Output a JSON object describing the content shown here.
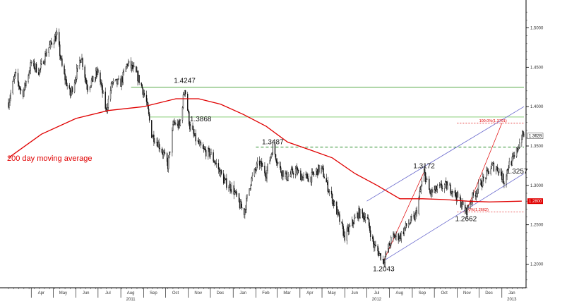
{
  "chart_data": {
    "type": "candlestick",
    "title": "",
    "ylim": [
      1.17,
      1.53
    ],
    "y_ticks": [
      1.2,
      1.25,
      1.3,
      1.35,
      1.4,
      1.45,
      1.5
    ],
    "y_tick_labels": [
      "1.2000",
      "1.2500",
      "1.3000",
      "1.3500",
      "1.4000",
      "1.4500",
      "1.5000"
    ],
    "x_range": [
      "2011-03-01",
      "2013-01-31"
    ],
    "month_labels": [
      {
        "date": "2011-04-01",
        "label": "Apr"
      },
      {
        "date": "2011-05-01",
        "label": "May"
      },
      {
        "date": "2011-06-01",
        "label": "Jun"
      },
      {
        "date": "2011-07-01",
        "label": "Jul"
      },
      {
        "date": "2011-08-01",
        "label": "Aug"
      },
      {
        "date": "2011-09-01",
        "label": "Sep"
      },
      {
        "date": "2011-10-01",
        "label": "Oct"
      },
      {
        "date": "2011-11-01",
        "label": "Nov"
      },
      {
        "date": "2011-12-01",
        "label": "Dec"
      },
      {
        "date": "2012-01-01",
        "label": "Jan"
      },
      {
        "date": "2012-02-01",
        "label": "Feb"
      },
      {
        "date": "2012-03-01",
        "label": "Mar"
      },
      {
        "date": "2012-04-01",
        "label": "Apr"
      },
      {
        "date": "2012-05-01",
        "label": "May"
      },
      {
        "date": "2012-06-01",
        "label": "Jun"
      },
      {
        "date": "2012-07-01",
        "label": "Jul"
      },
      {
        "date": "2012-08-01",
        "label": "Aug"
      },
      {
        "date": "2012-09-01",
        "label": "Sep"
      },
      {
        "date": "2012-10-01",
        "label": "Oct"
      },
      {
        "date": "2012-11-01",
        "label": "Nov"
      },
      {
        "date": "2012-12-01",
        "label": "Dec"
      },
      {
        "date": "2013-01-01",
        "label": "Jan"
      }
    ],
    "year_labels": [
      {
        "date": "2011-08-01",
        "label": "2011"
      },
      {
        "date": "2012-07-01",
        "label": "2012"
      },
      {
        "date": "2013-01-01",
        "label": "2013"
      }
    ],
    "price_path": [
      [
        "2011-03-01",
        1.405
      ],
      [
        "2011-03-10",
        1.44
      ],
      [
        "2011-03-20",
        1.415
      ],
      [
        "2011-04-01",
        1.455
      ],
      [
        "2011-04-12",
        1.445
      ],
      [
        "2011-04-22",
        1.47
      ],
      [
        "2011-05-01",
        1.485
      ],
      [
        "2011-05-06",
        1.49
      ],
      [
        "2011-05-14",
        1.445
      ],
      [
        "2011-05-24",
        1.415
      ],
      [
        "2011-06-01",
        1.44
      ],
      [
        "2011-06-08",
        1.465
      ],
      [
        "2011-06-16",
        1.425
      ],
      [
        "2011-06-25",
        1.435
      ],
      [
        "2011-07-01",
        1.445
      ],
      [
        "2011-07-12",
        1.395
      ],
      [
        "2011-07-20",
        1.43
      ],
      [
        "2011-08-01",
        1.43
      ],
      [
        "2011-08-10",
        1.455
      ],
      [
        "2011-08-20",
        1.445
      ],
      [
        "2011-08-28",
        1.43
      ],
      [
        "2011-09-05",
        1.405
      ],
      [
        "2011-09-12",
        1.365
      ],
      [
        "2011-09-20",
        1.355
      ],
      [
        "2011-09-28",
        1.34
      ],
      [
        "2011-10-04",
        1.325
      ],
      [
        "2011-10-12",
        1.38
      ],
      [
        "2011-10-20",
        1.375
      ],
      [
        "2011-10-27",
        1.4247
      ],
      [
        "2011-11-03",
        1.375
      ],
      [
        "2011-11-10",
        1.36
      ],
      [
        "2011-11-20",
        1.345
      ],
      [
        "2011-12-01",
        1.34
      ],
      [
        "2011-12-10",
        1.325
      ],
      [
        "2011-12-20",
        1.305
      ],
      [
        "2012-01-01",
        1.295
      ],
      [
        "2012-01-10",
        1.275
      ],
      [
        "2012-01-16",
        1.266
      ],
      [
        "2012-01-25",
        1.305
      ],
      [
        "2012-02-05",
        1.33
      ],
      [
        "2012-02-15",
        1.315
      ],
      [
        "2012-02-24",
        1.3487
      ],
      [
        "2012-03-05",
        1.32
      ],
      [
        "2012-03-15",
        1.31
      ],
      [
        "2012-03-25",
        1.32
      ],
      [
        "2012-04-05",
        1.31
      ],
      [
        "2012-04-16",
        1.31
      ],
      [
        "2012-04-26",
        1.32
      ],
      [
        "2012-05-01",
        1.32
      ],
      [
        "2012-05-10",
        1.295
      ],
      [
        "2012-05-20",
        1.27
      ],
      [
        "2012-06-01",
        1.235
      ],
      [
        "2012-06-10",
        1.25
      ],
      [
        "2012-06-20",
        1.265
      ],
      [
        "2012-07-01",
        1.26
      ],
      [
        "2012-07-10",
        1.225
      ],
      [
        "2012-07-24",
        1.2043
      ],
      [
        "2012-08-05",
        1.235
      ],
      [
        "2012-08-15",
        1.235
      ],
      [
        "2012-08-25",
        1.25
      ],
      [
        "2012-09-05",
        1.26
      ],
      [
        "2012-09-17",
        1.3172
      ],
      [
        "2012-09-25",
        1.29
      ],
      [
        "2012-10-05",
        1.295
      ],
      [
        "2012-10-15",
        1.3
      ],
      [
        "2012-10-25",
        1.295
      ],
      [
        "2012-11-05",
        1.28
      ],
      [
        "2012-11-13",
        1.2662
      ],
      [
        "2012-11-22",
        1.285
      ],
      [
        "2012-12-05",
        1.305
      ],
      [
        "2012-12-12",
        1.315
      ],
      [
        "2012-12-19",
        1.325
      ],
      [
        "2012-12-28",
        1.32
      ],
      [
        "2013-01-04",
        1.305
      ],
      [
        "2013-01-10",
        1.3257
      ],
      [
        "2013-01-18",
        1.335
      ],
      [
        "2013-01-28",
        1.3628
      ]
    ],
    "moving_average": {
      "name": "200 day moving average",
      "points": [
        [
          "2011-03-01",
          1.335
        ],
        [
          "2011-04-15",
          1.365
        ],
        [
          "2011-06-01",
          1.385
        ],
        [
          "2011-07-15",
          1.395
        ],
        [
          "2011-09-01",
          1.4
        ],
        [
          "2011-10-15",
          1.41
        ],
        [
          "2011-11-15",
          1.41
        ],
        [
          "2011-12-15",
          1.403
        ],
        [
          "2012-01-15",
          1.39
        ],
        [
          "2012-02-15",
          1.375
        ],
        [
          "2012-03-15",
          1.355
        ],
        [
          "2012-04-15",
          1.345
        ],
        [
          "2012-05-15",
          1.335
        ],
        [
          "2012-06-15",
          1.315
        ],
        [
          "2012-07-15",
          1.3
        ],
        [
          "2012-08-15",
          1.283
        ],
        [
          "2012-09-15",
          1.283
        ],
        [
          "2012-10-15",
          1.282
        ],
        [
          "2012-11-15",
          1.28
        ],
        [
          "2012-12-15",
          1.279
        ],
        [
          "2013-01-28",
          1.28
        ]
      ],
      "color": "#e00000"
    },
    "levels": [
      {
        "value": 1.4247,
        "style": "solid",
        "color": "#55aa44"
      },
      {
        "value": 1.3868,
        "style": "solid",
        "color": "#88cc77"
      },
      {
        "value": 1.3487,
        "style": "dashed",
        "color": "#228822"
      }
    ],
    "annotations": [
      {
        "label": "1.4247",
        "date": "2011-10-27",
        "value": 1.4247,
        "pos": "above"
      },
      {
        "label": "1.3868",
        "date": "2011-11-12",
        "value": 1.3868,
        "pos": "below"
      },
      {
        "label": "1.3487",
        "date": "2012-02-24",
        "value": 1.3487,
        "pos": "above"
      },
      {
        "label": "1.3172",
        "date": "2012-09-17",
        "value": 1.3172,
        "pos": "above"
      },
      {
        "label": "1.2043",
        "date": "2012-07-24",
        "value": 1.2043,
        "pos": "below"
      },
      {
        "label": "1.2662",
        "date": "2012-11-13",
        "value": 1.2662,
        "pos": "below"
      },
      {
        "label": "1.3257",
        "date": "2013-01-10",
        "value": 1.3257,
        "pos": "below"
      }
    ],
    "fibonacci": {
      "color": "#e00000",
      "levels": [
        {
          "label": "100.0%(1.3791)",
          "value": 1.3791
        },
        {
          "label": "0.0%(1.2662)",
          "value": 1.2662
        }
      ],
      "from": [
        "2012-11-13",
        1.2662
      ],
      "to": [
        "2013-01-01",
        1.3791
      ],
      "impulse": {
        "from": [
          "2012-07-24",
          1.2043
        ],
        "to": [
          "2012-09-17",
          1.3172
        ]
      }
    },
    "channel": {
      "color": "#6666cc",
      "lower": [
        [
          "2012-07-24",
          1.2043
        ],
        [
          "2013-01-31",
          1.315
        ]
      ],
      "upper": [
        [
          "2012-07-01",
          1.28
        ],
        [
          "2013-01-31",
          1.4
        ]
      ]
    },
    "last_price": {
      "label": "1.3628",
      "value": 1.3628
    },
    "ma_price": {
      "label": "1.2800",
      "value": 1.28,
      "color": "#e00000"
    },
    "ma_label": "200 day moving average"
  }
}
